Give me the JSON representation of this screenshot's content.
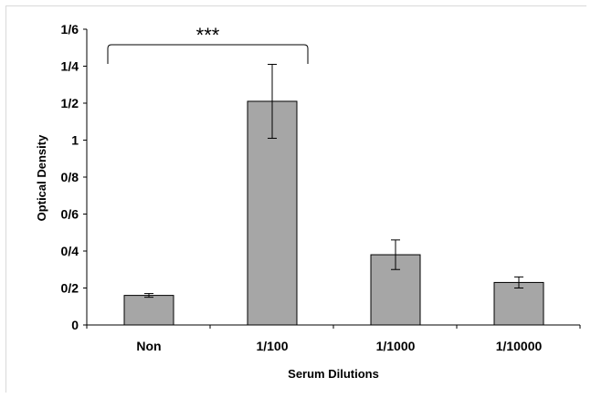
{
  "chart_data": {
    "type": "bar",
    "categories": [
      "Non",
      "1/100",
      "1/1000",
      "1/10000"
    ],
    "values": [
      0.16,
      1.21,
      0.38,
      0.23
    ],
    "errors": [
      0.01,
      0.2,
      0.08,
      0.03
    ],
    "xlabel": "Serum Dilutions",
    "ylabel": "Optical Density",
    "ylim": [
      0,
      1.6
    ],
    "yticks": [
      0,
      0.2,
      0.4,
      0.6,
      0.8,
      1.0,
      1.2,
      1.4,
      1.6
    ],
    "ytick_labels": [
      "0",
      "0/2",
      "0/4",
      "0/6",
      "0/8",
      "1",
      "1/2",
      "1/4",
      "1/6"
    ],
    "bar_color": "#a6a6a6",
    "grid": false,
    "legend": "none",
    "annotation": {
      "text": "***",
      "from_category": "Non",
      "to_category": "1/100"
    }
  }
}
